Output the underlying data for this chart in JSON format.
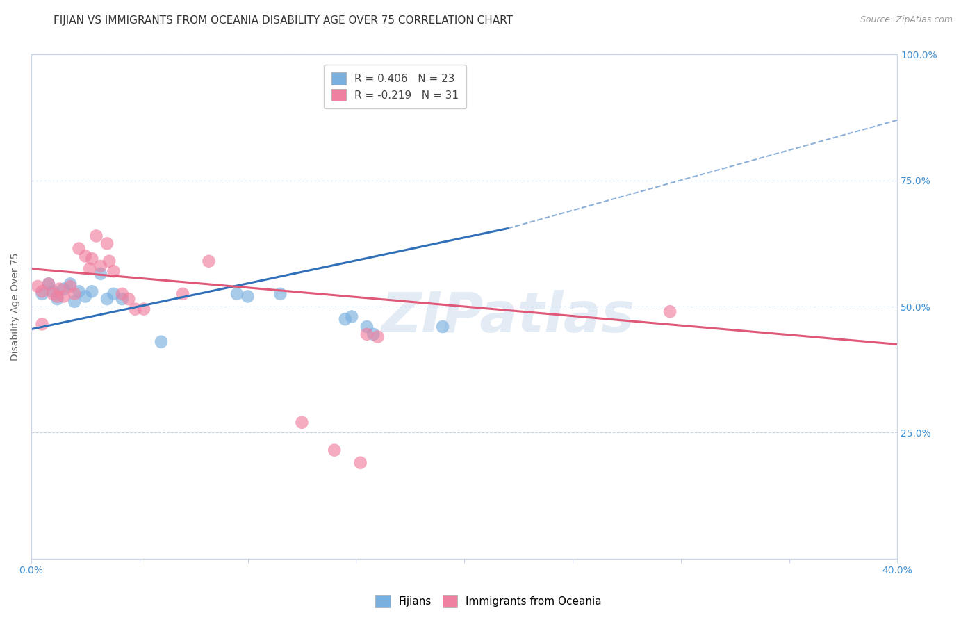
{
  "title": "FIJIAN VS IMMIGRANTS FROM OCEANIA DISABILITY AGE OVER 75 CORRELATION CHART",
  "source": "Source: ZipAtlas.com",
  "ylabel": "Disability Age Over 75",
  "x_min": 0.0,
  "x_max": 0.4,
  "y_min": 0.0,
  "y_max": 1.0,
  "x_ticks": [
    0.0,
    0.05,
    0.1,
    0.15,
    0.2,
    0.25,
    0.3,
    0.35,
    0.4
  ],
  "y_ticks": [
    0.0,
    0.25,
    0.5,
    0.75,
    1.0
  ],
  "legend_line1": "R = 0.406   N = 23",
  "legend_line2": "R = -0.219   N = 31",
  "fijian_points": [
    [
      0.005,
      0.525
    ],
    [
      0.008,
      0.545
    ],
    [
      0.01,
      0.53
    ],
    [
      0.012,
      0.515
    ],
    [
      0.015,
      0.535
    ],
    [
      0.018,
      0.545
    ],
    [
      0.02,
      0.51
    ],
    [
      0.022,
      0.53
    ],
    [
      0.025,
      0.52
    ],
    [
      0.028,
      0.53
    ],
    [
      0.032,
      0.565
    ],
    [
      0.035,
      0.515
    ],
    [
      0.038,
      0.525
    ],
    [
      0.042,
      0.515
    ],
    [
      0.06,
      0.43
    ],
    [
      0.095,
      0.525
    ],
    [
      0.1,
      0.52
    ],
    [
      0.115,
      0.525
    ],
    [
      0.145,
      0.475
    ],
    [
      0.148,
      0.48
    ],
    [
      0.155,
      0.46
    ],
    [
      0.158,
      0.445
    ],
    [
      0.19,
      0.46
    ]
  ],
  "oceania_points": [
    [
      0.003,
      0.54
    ],
    [
      0.005,
      0.53
    ],
    [
      0.008,
      0.545
    ],
    [
      0.01,
      0.525
    ],
    [
      0.012,
      0.52
    ],
    [
      0.013,
      0.535
    ],
    [
      0.015,
      0.52
    ],
    [
      0.018,
      0.54
    ],
    [
      0.02,
      0.525
    ],
    [
      0.022,
      0.615
    ],
    [
      0.025,
      0.6
    ],
    [
      0.027,
      0.575
    ],
    [
      0.028,
      0.595
    ],
    [
      0.03,
      0.64
    ],
    [
      0.032,
      0.58
    ],
    [
      0.035,
      0.625
    ],
    [
      0.036,
      0.59
    ],
    [
      0.038,
      0.57
    ],
    [
      0.042,
      0.525
    ],
    [
      0.045,
      0.515
    ],
    [
      0.048,
      0.495
    ],
    [
      0.052,
      0.495
    ],
    [
      0.07,
      0.525
    ],
    [
      0.082,
      0.59
    ],
    [
      0.125,
      0.27
    ],
    [
      0.14,
      0.215
    ],
    [
      0.152,
      0.19
    ],
    [
      0.155,
      0.445
    ],
    [
      0.16,
      0.44
    ],
    [
      0.295,
      0.49
    ],
    [
      0.005,
      0.465
    ]
  ],
  "fijian_color": "#7ab0e0",
  "oceania_color": "#f080a0",
  "fijian_line_color": "#3070b8",
  "oceania_line_color": "#e05878",
  "fijian_trend_solid": [
    0.0,
    0.455,
    0.22,
    0.655
  ],
  "fijian_trend_dashed": [
    0.22,
    0.655,
    0.4,
    0.87
  ],
  "oceania_trend": [
    0.0,
    0.575,
    0.4,
    0.425
  ],
  "watermark_text": "ZIPatlas",
  "background_color": "#ffffff",
  "grid_color": "#c8d4e8",
  "title_fontsize": 11,
  "axis_label_fontsize": 10,
  "tick_fontsize": 10,
  "legend_fontsize": 11,
  "tick_color": "#4090d0"
}
